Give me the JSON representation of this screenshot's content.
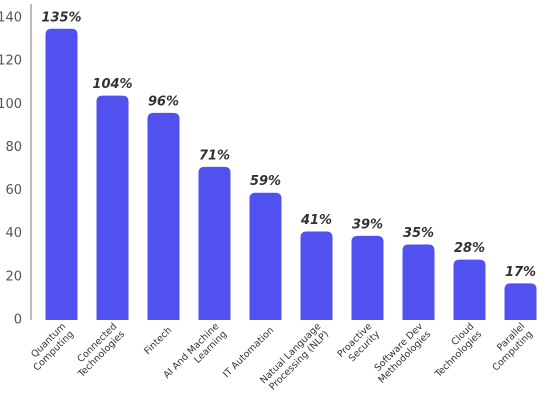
{
  "chart_data": {
    "type": "bar",
    "categories": [
      [
        "Quantum",
        "Computing"
      ],
      [
        "Connected",
        "Technologies"
      ],
      [
        "Fintech"
      ],
      [
        "AI And Machine",
        "Learning"
      ],
      [
        "IT Automation"
      ],
      [
        "Natual Language",
        "Processing (NLP)"
      ],
      [
        "Proactive",
        "Security"
      ],
      [
        "Software Dev",
        "Methodologies"
      ],
      [
        "Cloud",
        "Technologies"
      ],
      [
        "Parallel",
        "Computing"
      ]
    ],
    "values": [
      135,
      104,
      96,
      71,
      59,
      41,
      39,
      35,
      28,
      17
    ],
    "value_labels": [
      "135%",
      "104%",
      "96%",
      "71%",
      "59%",
      "41%",
      "39%",
      "35%",
      "28%",
      "17%"
    ],
    "color": "#5151f0",
    "ylim": [
      0,
      140
    ],
    "yticks": [
      0,
      20,
      40,
      60,
      80,
      100,
      120,
      140
    ],
    "grid": false
  }
}
